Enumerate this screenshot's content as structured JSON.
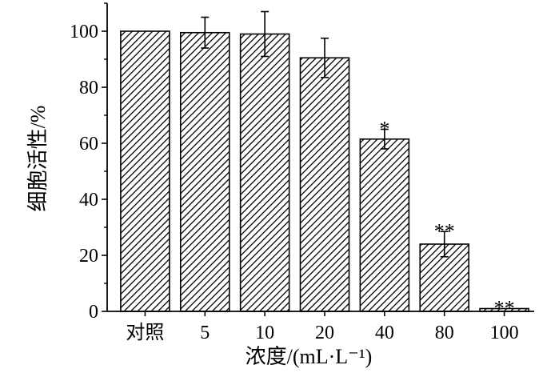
{
  "chart_data": {
    "type": "bar",
    "categories": [
      "对照",
      "5",
      "10",
      "20",
      "40",
      "80",
      "100"
    ],
    "values": [
      100,
      99.5,
      99,
      90.5,
      61.5,
      24,
      1
    ],
    "error_bars": [
      0,
      5.5,
      8,
      7,
      3.5,
      4.5,
      0
    ],
    "significance": [
      "",
      "",
      "",
      "",
      "*",
      "**",
      "**"
    ],
    "xlabel": "浓度/(mL·L⁻¹)",
    "ylabel": "细胞活性/%",
    "ylim": [
      0,
      110
    ],
    "yticks": [
      0,
      20,
      40,
      60,
      80,
      100
    ],
    "bar_fill": "diagonal-hatch",
    "colors": {
      "bar_stroke": "#000000",
      "hatch": "#000000",
      "background": "#ffffff"
    },
    "grid": false,
    "legend": "none"
  }
}
